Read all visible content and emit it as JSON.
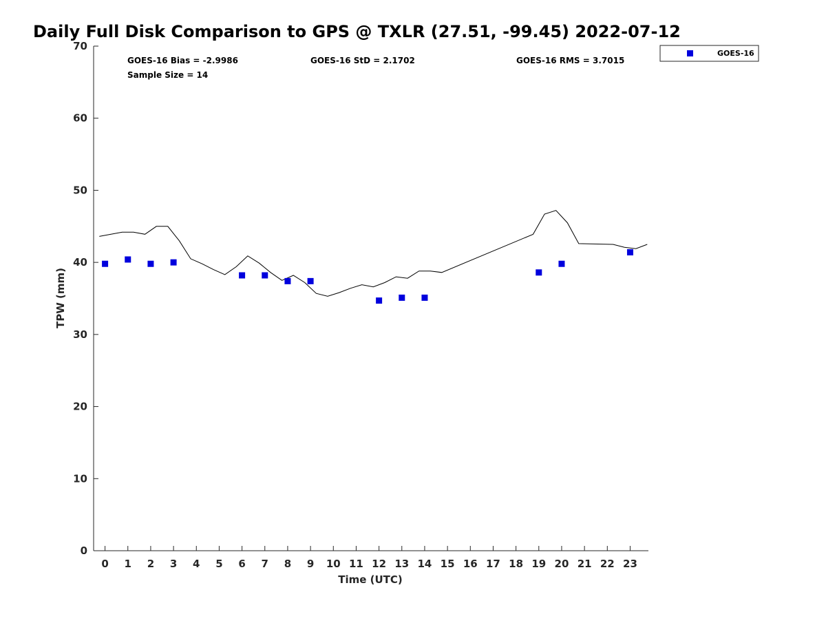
{
  "chart_data": {
    "type": "scatter",
    "title": "Daily Full Disk Comparison to GPS @ TXLR (27.51, -99.45) 2022-07-12",
    "xlabel": "Time (UTC)",
    "ylabel": "TPW (mm)",
    "xlim": [
      -0.5,
      23.8
    ],
    "ylim": [
      0,
      70
    ],
    "x_ticks": [
      0,
      1,
      2,
      3,
      4,
      5,
      6,
      7,
      8,
      9,
      10,
      11,
      12,
      13,
      14,
      15,
      16,
      17,
      18,
      19,
      20,
      21,
      22,
      23
    ],
    "y_ticks": [
      0,
      10,
      20,
      30,
      40,
      50,
      60,
      70
    ],
    "grid": false,
    "legend_position": "top-right",
    "stats": {
      "bias": "GOES-16 Bias = -2.9986",
      "std": "GOES-16 StD = 2.1702",
      "rms": "GOES-16 RMS = 3.7015",
      "sample": "Sample Size = 14"
    },
    "series": [
      {
        "name": "GOES-16",
        "type": "scatter",
        "marker": "square",
        "color": "#0000dd",
        "points": [
          [
            0,
            39.8
          ],
          [
            1,
            40.4
          ],
          [
            2,
            39.8
          ],
          [
            3,
            40.0
          ],
          [
            6,
            38.2
          ],
          [
            7,
            38.2
          ],
          [
            8,
            37.4
          ],
          [
            9,
            37.4
          ],
          [
            12,
            34.7
          ],
          [
            13,
            35.1
          ],
          [
            14,
            35.1
          ],
          [
            19,
            38.6
          ],
          [
            20,
            39.8
          ],
          [
            23,
            41.4
          ]
        ]
      },
      {
        "type": "line",
        "color": "#000000",
        "points": [
          [
            -0.25,
            43.6
          ],
          [
            0.75,
            44.2
          ],
          [
            1.25,
            44.2
          ],
          [
            1.75,
            43.9
          ],
          [
            2.25,
            45.0
          ],
          [
            2.75,
            45.0
          ],
          [
            3.25,
            43.0
          ],
          [
            3.75,
            40.5
          ],
          [
            4.25,
            39.8
          ],
          [
            4.75,
            39.0
          ],
          [
            5.25,
            38.3
          ],
          [
            5.75,
            39.4
          ],
          [
            6.25,
            40.9
          ],
          [
            6.75,
            39.9
          ],
          [
            7.25,
            38.6
          ],
          [
            7.75,
            37.5
          ],
          [
            8.25,
            38.2
          ],
          [
            8.75,
            37.2
          ],
          [
            9.25,
            35.7
          ],
          [
            9.75,
            35.3
          ],
          [
            10.25,
            35.8
          ],
          [
            10.75,
            36.4
          ],
          [
            11.25,
            36.9
          ],
          [
            11.75,
            36.6
          ],
          [
            12.25,
            37.2
          ],
          [
            12.75,
            38.0
          ],
          [
            13.25,
            37.8
          ],
          [
            13.75,
            38.8
          ],
          [
            14.25,
            38.8
          ],
          [
            14.75,
            38.6
          ],
          [
            18.75,
            43.9
          ],
          [
            19.25,
            46.7
          ],
          [
            19.75,
            47.2
          ],
          [
            20.25,
            45.5
          ],
          [
            20.75,
            42.6
          ],
          [
            22.25,
            42.5
          ],
          [
            22.75,
            42.1
          ],
          [
            23.25,
            41.9
          ],
          [
            23.75,
            42.5
          ]
        ]
      }
    ]
  }
}
